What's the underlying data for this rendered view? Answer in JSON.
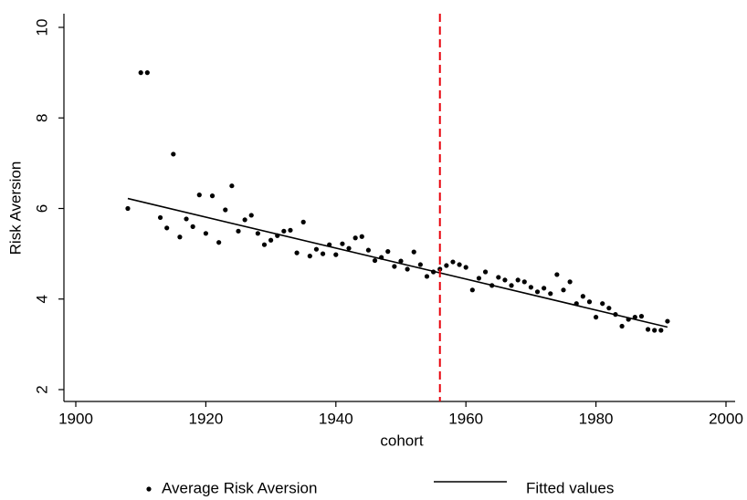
{
  "chart_data": {
    "type": "scatter",
    "x_label": "cohort",
    "y_label": "Risk Aversion",
    "xlim": [
      1900,
      2000
    ],
    "xticks": [
      1900,
      1920,
      1940,
      1960,
      1980,
      2000
    ],
    "ylim": [
      2,
      10
    ],
    "yticks": [
      2,
      4,
      6,
      8,
      10
    ],
    "grid": false,
    "legend_position": "bottom",
    "vline": 1956,
    "vline_color": "#e8000b",
    "series": [
      {
        "name": "Average Risk Aversion",
        "type": "scatter",
        "color": "#000000",
        "x": [
          1908,
          1910,
          1911,
          1913,
          1914,
          1915,
          1916,
          1917,
          1918,
          1919,
          1920,
          1921,
          1922,
          1923,
          1924,
          1925,
          1926,
          1927,
          1928,
          1929,
          1930,
          1931,
          1932,
          1933,
          1934,
          1935,
          1936,
          1937,
          1938,
          1939,
          1940,
          1941,
          1942,
          1943,
          1944,
          1945,
          1946,
          1947,
          1948,
          1949,
          1950,
          1951,
          1952,
          1953,
          1954,
          1955,
          1956,
          1957,
          1958,
          1959,
          1960,
          1961,
          1962,
          1963,
          1964,
          1965,
          1966,
          1967,
          1968,
          1969,
          1970,
          1971,
          1972,
          1973,
          1974,
          1975,
          1976,
          1977,
          1978,
          1979,
          1980,
          1981,
          1982,
          1983,
          1984,
          1985,
          1986,
          1987,
          1988,
          1989,
          1990,
          1991
        ],
        "values": [
          6.0,
          9.0,
          9.0,
          5.8,
          5.57,
          7.2,
          5.37,
          5.77,
          5.6,
          6.3,
          5.45,
          6.28,
          5.25,
          5.97,
          6.5,
          5.5,
          5.75,
          5.85,
          5.45,
          5.2,
          5.3,
          5.4,
          5.5,
          5.52,
          5.02,
          5.7,
          4.95,
          5.1,
          5.0,
          5.2,
          4.98,
          5.22,
          5.12,
          5.35,
          5.38,
          5.08,
          4.85,
          4.92,
          5.05,
          4.72,
          4.84,
          4.66,
          5.04,
          4.76,
          4.5,
          4.6,
          4.66,
          4.74,
          4.82,
          4.76,
          4.7,
          4.2,
          4.46,
          4.6,
          4.3,
          4.48,
          4.42,
          4.3,
          4.42,
          4.38,
          4.26,
          4.16,
          4.24,
          4.12,
          4.54,
          4.2,
          4.38,
          3.9,
          4.06,
          3.94,
          3.6,
          3.9,
          3.8,
          3.66,
          3.4,
          3.55,
          3.6,
          3.62,
          3.33,
          3.31,
          3.31,
          3.51
        ]
      },
      {
        "name": "Fitted values",
        "type": "line",
        "color": "#000000",
        "x": [
          1908,
          1991
        ],
        "values": [
          6.22,
          3.38
        ]
      }
    ]
  }
}
